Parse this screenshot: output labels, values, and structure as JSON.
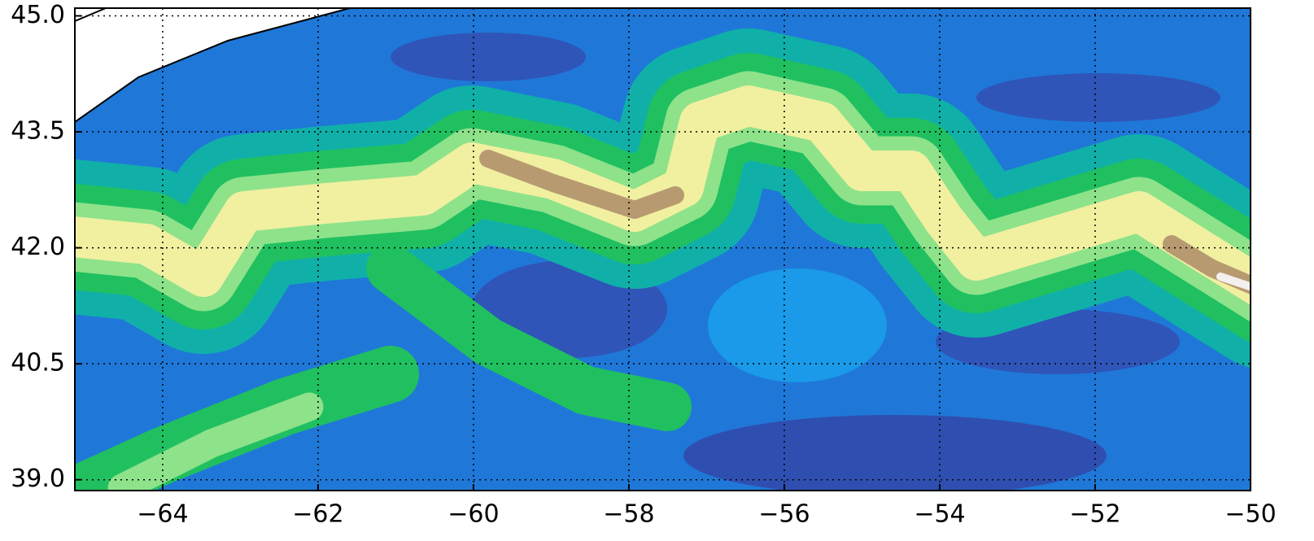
{
  "chart_data": {
    "type": "contour-map",
    "xlim": [
      -65.13,
      -50
    ],
    "ylim": [
      38.86,
      45.1
    ],
    "xticks": [
      {
        "value": -64,
        "label": "−64"
      },
      {
        "value": -62,
        "label": "−62"
      },
      {
        "value": -60,
        "label": "−60"
      },
      {
        "value": -58,
        "label": "−58"
      },
      {
        "value": -56,
        "label": "−56"
      },
      {
        "value": -54,
        "label": "−54"
      },
      {
        "value": -52,
        "label": "−52"
      },
      {
        "value": -50,
        "label": "−50"
      }
    ],
    "yticks": [
      {
        "value": 39,
        "label": "39.0"
      },
      40.5,
      {
        "value": 42,
        "label": "42.0"
      },
      43.5,
      {
        "value": 45,
        "label": "45.0"
      }
    ],
    "grid": true
  }
}
